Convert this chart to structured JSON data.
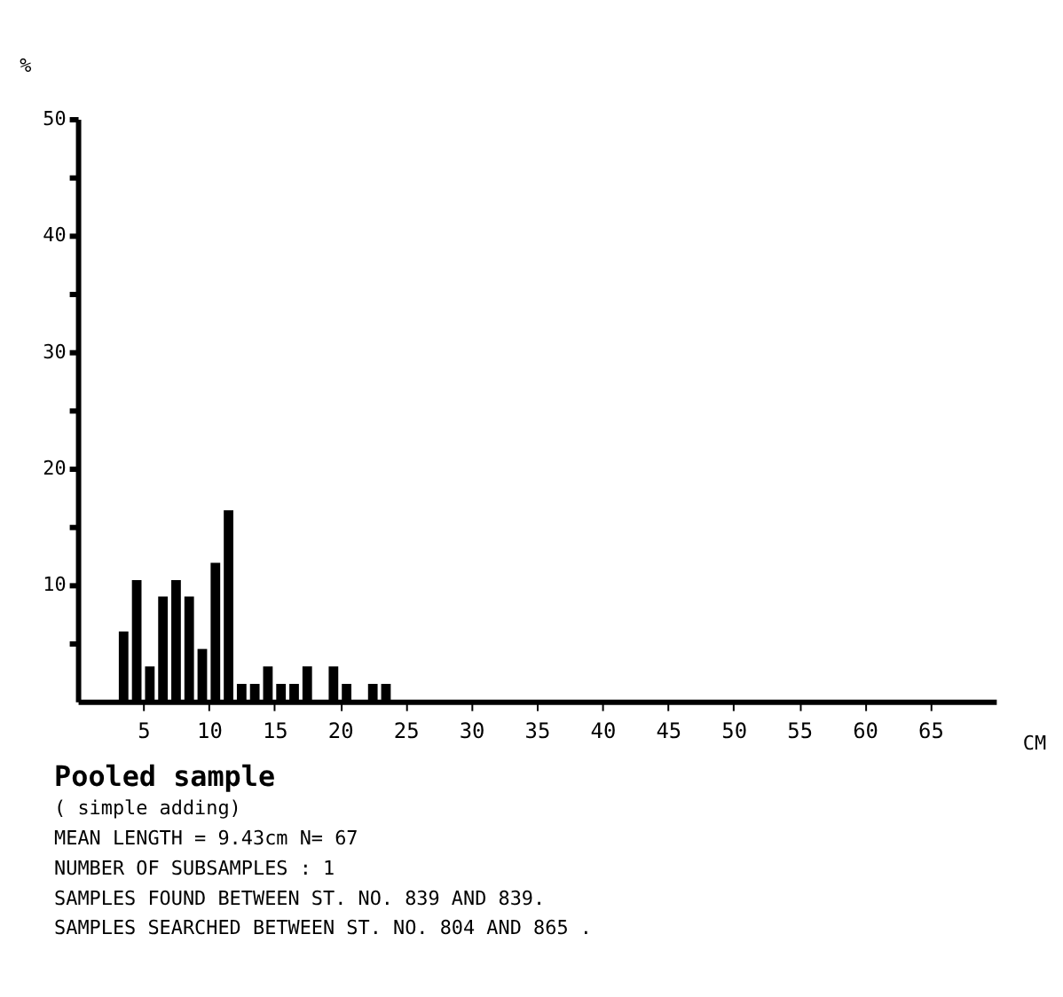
{
  "chart_data": {
    "type": "histogram",
    "title": "Pooled sample",
    "subtitle": "( simple adding)",
    "xlabel": "CM",
    "ylabel": "%",
    "bins": [
      0,
      1,
      2,
      3,
      4,
      5,
      6,
      7,
      8,
      9,
      10,
      11,
      12,
      13,
      14,
      15,
      16,
      17,
      18,
      19,
      20,
      21,
      22,
      23,
      24,
      25,
      26,
      27,
      28,
      29,
      30,
      31,
      32,
      33,
      34,
      35,
      36,
      37,
      38,
      39,
      40,
      41,
      42,
      43,
      44,
      45,
      46,
      47,
      48,
      49,
      50,
      51,
      52,
      53,
      54,
      55,
      56,
      57,
      58,
      59,
      60,
      61,
      62,
      63,
      64,
      65,
      66,
      67,
      68,
      69,
      70
    ],
    "values": [
      0,
      0,
      0,
      6.0,
      10.4,
      3.0,
      9.0,
      10.4,
      9.0,
      4.5,
      11.9,
      16.4,
      1.5,
      1.5,
      3.0,
      1.5,
      1.5,
      3.0,
      0,
      3.0,
      1.5,
      0,
      1.5,
      1.5,
      0,
      0,
      0,
      0,
      0,
      0,
      0,
      0,
      0,
      0,
      0,
      0,
      0,
      0,
      0,
      0,
      0,
      0,
      0,
      0,
      0,
      0,
      0,
      0,
      0,
      0,
      0,
      0,
      0,
      0,
      0,
      0,
      0,
      0,
      0,
      0,
      0,
      0,
      0,
      0,
      0,
      0,
      0,
      0,
      0,
      0
    ],
    "color": "#000000",
    "xlim": [
      0,
      70
    ],
    "xticks": [
      5,
      10,
      15,
      20,
      25,
      30,
      35,
      40,
      45,
      50,
      55,
      60,
      65
    ],
    "ylim": [
      0,
      50
    ],
    "yticks": [
      {
        "value": 5,
        "label": null
      },
      10,
      {
        "value": 15,
        "label": null
      },
      20,
      {
        "value": 25,
        "label": null
      },
      30,
      {
        "value": 35,
        "label": null
      },
      40,
      {
        "value": 45,
        "label": null
      },
      50
    ],
    "grid": false,
    "annotations": [
      "MEAN LENGTH =  9.43cm  N=   67",
      "NUMBER OF SUBSAMPLES :  1",
      "SAMPLES FOUND BETWEEN ST. NO. 839 AND  839.",
      "SAMPLES SEARCHED BETWEEN ST. NO. 804 AND  865 ."
    ]
  }
}
